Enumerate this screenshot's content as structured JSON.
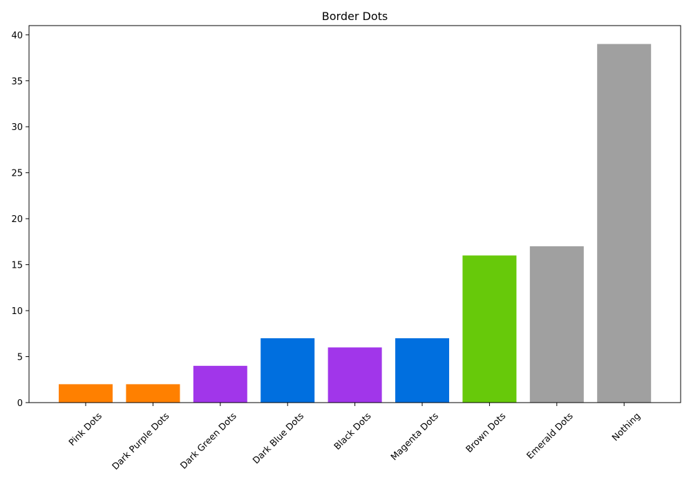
{
  "chart_data": {
    "type": "bar",
    "title": "Border Dots",
    "xlabel": "",
    "ylabel": "",
    "categories": [
      "Pink Dots",
      "Dark Purple Dots",
      "Dark Green Dots",
      "Dark Blue Dots",
      "Black Dots",
      "Magenta Dots",
      "Brown Dots",
      "Emerald Dots",
      "Nothing"
    ],
    "values": [
      2,
      2,
      4,
      7,
      6,
      7,
      16,
      17,
      39
    ],
    "colors": [
      "#ff8000",
      "#ff8000",
      "#a136ea",
      "#006fdf",
      "#a136ea",
      "#006fdf",
      "#67c90a",
      "#a0a0a0",
      "#a0a0a0"
    ],
    "ylim": [
      0,
      41
    ],
    "yticks": [
      0,
      5,
      10,
      15,
      20,
      25,
      30,
      35,
      40
    ],
    "grid": false,
    "legend": "none"
  }
}
